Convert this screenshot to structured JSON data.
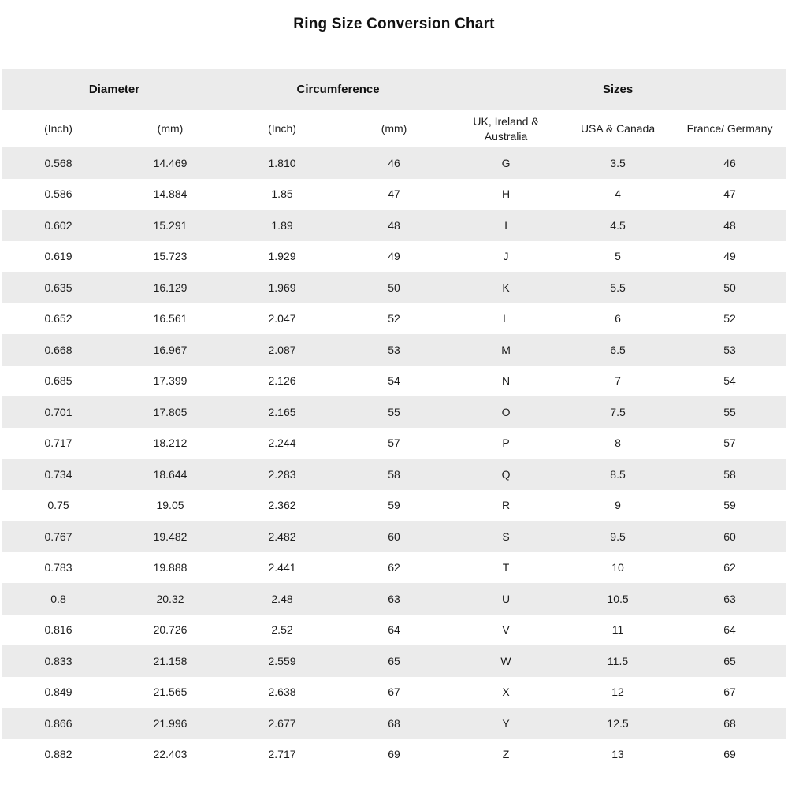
{
  "title": "Ring Size Conversion Chart",
  "chart_data": {
    "type": "table",
    "title": "Ring Size Conversion Chart",
    "group_headers": [
      {
        "label": "Diameter",
        "colspan": 2
      },
      {
        "label": "Circumference",
        "colspan": 2
      },
      {
        "label": "Sizes",
        "colspan": 3
      }
    ],
    "columns": [
      "(Inch)",
      "(mm)",
      "(Inch)",
      "(mm)",
      "UK, Ireland & Australia",
      "USA & Canada",
      "France/ Germany"
    ],
    "rows": [
      [
        "0.568",
        "14.469",
        "1.810",
        "46",
        "G",
        "3.5",
        "46"
      ],
      [
        "0.586",
        "14.884",
        "1.85",
        "47",
        "H",
        "4",
        "47"
      ],
      [
        "0.602",
        "15.291",
        "1.89",
        "48",
        "I",
        "4.5",
        "48"
      ],
      [
        "0.619",
        "15.723",
        "1.929",
        "49",
        "J",
        "5",
        "49"
      ],
      [
        "0.635",
        "16.129",
        "1.969",
        "50",
        "K",
        "5.5",
        "50"
      ],
      [
        "0.652",
        "16.561",
        "2.047",
        "52",
        "L",
        "6",
        "52"
      ],
      [
        "0.668",
        "16.967",
        "2.087",
        "53",
        "M",
        "6.5",
        "53"
      ],
      [
        "0.685",
        "17.399",
        "2.126",
        "54",
        "N",
        "7",
        "54"
      ],
      [
        "0.701",
        "17.805",
        "2.165",
        "55",
        "O",
        "7.5",
        "55"
      ],
      [
        "0.717",
        "18.212",
        "2.244",
        "57",
        "P",
        "8",
        "57"
      ],
      [
        "0.734",
        "18.644",
        "2.283",
        "58",
        "Q",
        "8.5",
        "58"
      ],
      [
        "0.75",
        "19.05",
        "2.362",
        "59",
        "R",
        "9",
        "59"
      ],
      [
        "0.767",
        "19.482",
        "2.482",
        "60",
        "S",
        "9.5",
        "60"
      ],
      [
        "0.783",
        "19.888",
        "2.441",
        "62",
        "T",
        "10",
        "62"
      ],
      [
        "0.8",
        "20.32",
        "2.48",
        "63",
        "U",
        "10.5",
        "63"
      ],
      [
        "0.816",
        "20.726",
        "2.52",
        "64",
        "V",
        "11",
        "64"
      ],
      [
        "0.833",
        "21.158",
        "2.559",
        "65",
        "W",
        "11.5",
        "65"
      ],
      [
        "0.849",
        "21.565",
        "2.638",
        "67",
        "X",
        "12",
        "67"
      ],
      [
        "0.866",
        "21.996",
        "2.677",
        "68",
        "Y",
        "12.5",
        "68"
      ],
      [
        "0.882",
        "22.403",
        "2.717",
        "69",
        "Z",
        "13",
        "69"
      ]
    ],
    "layout": {
      "stripe_color": "#ebebeb",
      "background_color": "#ffffff",
      "text_color": "#1d1d1d",
      "striping": "odd data rows shaded, group header row shaded",
      "column_count": 7,
      "row_count": 20
    }
  }
}
